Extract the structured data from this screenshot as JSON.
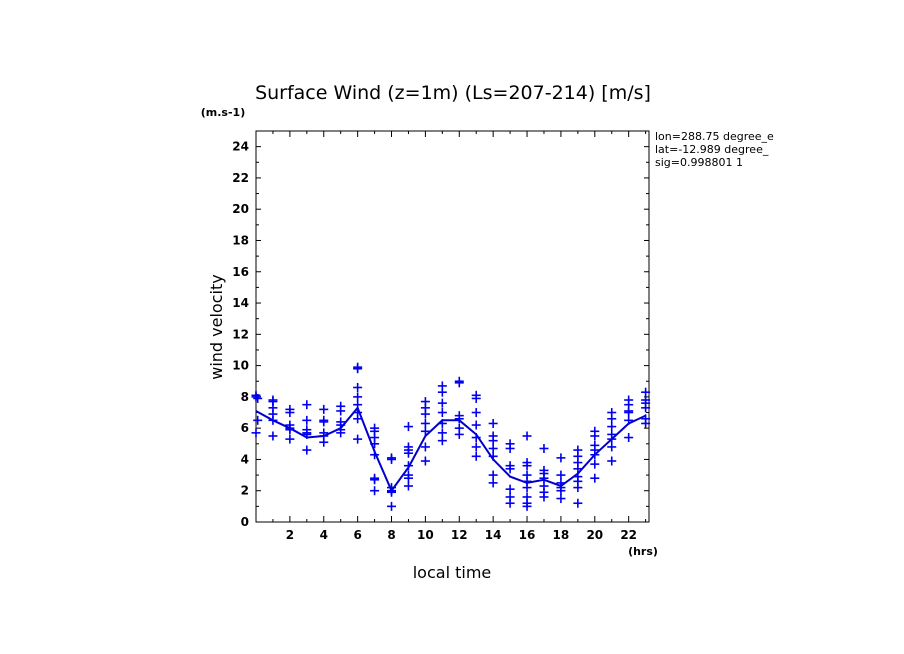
{
  "chart_data": {
    "type": "scatter",
    "title": "Surface Wind (z=1m) (Ls=207-214) [m/s]",
    "ylabel": "wind velocity",
    "yunit": "(m.s-1)",
    "xlabel": "local time",
    "xunit": "(hrs)",
    "xlim": [
      0,
      23.2
    ],
    "ylim": [
      0,
      25
    ],
    "x_ticks": [
      2,
      4,
      6,
      8,
      10,
      12,
      14,
      16,
      18,
      20,
      22
    ],
    "y_ticks": [
      0,
      2,
      4,
      6,
      8,
      10,
      12,
      14,
      16,
      18,
      20,
      22,
      24
    ],
    "info": [
      "lon=288.75 degree_e",
      "lat=-12.989 degree_",
      "sig=0.998801 1"
    ],
    "colors": {
      "series": "#0000ee",
      "mean": "#0000cc"
    },
    "series": [
      {
        "kind": "scatter",
        "marker": "plus",
        "points": [
          [
            0.0,
            8.1
          ],
          [
            0.0,
            8.0
          ],
          [
            0.1,
            7.9
          ],
          [
            0.1,
            6.5
          ],
          [
            0.0,
            5.7
          ],
          [
            1.0,
            7.8
          ],
          [
            1.0,
            7.7
          ],
          [
            1.0,
            7.3
          ],
          [
            1.0,
            6.9
          ],
          [
            1.0,
            6.5
          ],
          [
            1.0,
            5.5
          ],
          [
            2.0,
            7.2
          ],
          [
            2.0,
            7.0
          ],
          [
            2.0,
            6.2
          ],
          [
            2.0,
            6.0
          ],
          [
            2.0,
            5.9
          ],
          [
            2.0,
            5.3
          ],
          [
            3.0,
            7.5
          ],
          [
            3.0,
            6.5
          ],
          [
            3.0,
            5.9
          ],
          [
            3.0,
            5.7
          ],
          [
            3.0,
            5.6
          ],
          [
            3.0,
            4.6
          ],
          [
            4.0,
            7.2
          ],
          [
            4.0,
            6.5
          ],
          [
            4.0,
            6.4
          ],
          [
            4.0,
            5.7
          ],
          [
            4.0,
            5.5
          ],
          [
            4.0,
            5.1
          ],
          [
            5.0,
            7.4
          ],
          [
            5.0,
            7.1
          ],
          [
            5.0,
            6.4
          ],
          [
            5.0,
            6.2
          ],
          [
            5.0,
            5.9
          ],
          [
            5.0,
            5.7
          ],
          [
            6.0,
            9.9
          ],
          [
            6.0,
            9.8
          ],
          [
            6.0,
            8.6
          ],
          [
            6.0,
            8.0
          ],
          [
            6.0,
            7.5
          ],
          [
            6.0,
            7.0
          ],
          [
            6.0,
            6.6
          ],
          [
            6.0,
            5.3
          ],
          [
            7.0,
            6.0
          ],
          [
            7.0,
            5.8
          ],
          [
            7.0,
            5.4
          ],
          [
            7.0,
            5.0
          ],
          [
            7.0,
            4.3
          ],
          [
            7.0,
            2.8
          ],
          [
            7.0,
            2.7
          ],
          [
            7.0,
            2.0
          ],
          [
            8.0,
            4.1
          ],
          [
            8.0,
            4.0
          ],
          [
            8.0,
            2.2
          ],
          [
            8.0,
            2.0
          ],
          [
            8.0,
            1.9
          ],
          [
            8.0,
            1.0
          ],
          [
            9.0,
            6.1
          ],
          [
            9.0,
            4.8
          ],
          [
            9.0,
            4.6
          ],
          [
            9.0,
            4.4
          ],
          [
            9.0,
            3.6
          ],
          [
            9.0,
            3.0
          ],
          [
            9.0,
            2.8
          ],
          [
            9.0,
            2.3
          ],
          [
            10.0,
            7.7
          ],
          [
            10.0,
            7.3
          ],
          [
            10.0,
            6.9
          ],
          [
            10.0,
            6.3
          ],
          [
            10.0,
            5.8
          ],
          [
            10.0,
            4.8
          ],
          [
            10.0,
            3.9
          ],
          [
            11.0,
            8.7
          ],
          [
            11.0,
            8.3
          ],
          [
            11.0,
            7.6
          ],
          [
            11.0,
            7.0
          ],
          [
            11.0,
            6.3
          ],
          [
            11.0,
            5.7
          ],
          [
            11.0,
            5.2
          ],
          [
            12.0,
            9.0
          ],
          [
            12.0,
            8.9
          ],
          [
            12.0,
            6.8
          ],
          [
            12.0,
            6.6
          ],
          [
            12.0,
            6.0
          ],
          [
            12.0,
            5.6
          ],
          [
            13.0,
            8.1
          ],
          [
            13.0,
            7.9
          ],
          [
            13.0,
            7.0
          ],
          [
            13.0,
            6.2
          ],
          [
            13.0,
            5.4
          ],
          [
            13.0,
            4.8
          ],
          [
            13.0,
            4.2
          ],
          [
            14.0,
            6.3
          ],
          [
            14.0,
            5.5
          ],
          [
            14.0,
            5.2
          ],
          [
            14.0,
            4.7
          ],
          [
            14.0,
            4.2
          ],
          [
            14.0,
            3.0
          ],
          [
            14.0,
            2.5
          ],
          [
            15.0,
            5.0
          ],
          [
            15.0,
            4.7
          ],
          [
            15.0,
            3.6
          ],
          [
            15.0,
            3.4
          ],
          [
            15.0,
            2.1
          ],
          [
            15.0,
            1.6
          ],
          [
            15.0,
            1.2
          ],
          [
            16.0,
            5.5
          ],
          [
            16.0,
            3.8
          ],
          [
            16.0,
            3.6
          ],
          [
            16.0,
            3.0
          ],
          [
            16.0,
            2.6
          ],
          [
            16.0,
            2.2
          ],
          [
            16.0,
            1.6
          ],
          [
            16.0,
            1.2
          ],
          [
            16.0,
            1.0
          ],
          [
            17.0,
            4.7
          ],
          [
            17.0,
            3.3
          ],
          [
            17.0,
            3.1
          ],
          [
            17.0,
            2.8
          ],
          [
            17.0,
            2.3
          ],
          [
            17.0,
            1.9
          ],
          [
            17.0,
            1.6
          ],
          [
            18.0,
            4.1
          ],
          [
            18.0,
            3.0
          ],
          [
            18.0,
            2.5
          ],
          [
            18.0,
            2.2
          ],
          [
            18.0,
            2.0
          ],
          [
            18.0,
            1.5
          ],
          [
            19.0,
            4.6
          ],
          [
            19.0,
            4.2
          ],
          [
            19.0,
            3.8
          ],
          [
            19.0,
            3.4
          ],
          [
            19.0,
            2.9
          ],
          [
            19.0,
            2.6
          ],
          [
            19.0,
            2.2
          ],
          [
            19.0,
            1.2
          ],
          [
            20.0,
            5.8
          ],
          [
            20.0,
            5.5
          ],
          [
            20.0,
            4.9
          ],
          [
            20.0,
            4.6
          ],
          [
            20.0,
            4.3
          ],
          [
            20.0,
            3.7
          ],
          [
            20.0,
            2.8
          ],
          [
            21.0,
            7.0
          ],
          [
            21.0,
            6.6
          ],
          [
            21.0,
            6.1
          ],
          [
            21.0,
            5.6
          ],
          [
            21.0,
            5.3
          ],
          [
            21.0,
            4.8
          ],
          [
            21.0,
            3.9
          ],
          [
            22.0,
            7.8
          ],
          [
            22.0,
            7.5
          ],
          [
            22.0,
            7.1
          ],
          [
            22.0,
            7.0
          ],
          [
            22.0,
            6.5
          ],
          [
            22.0,
            5.4
          ],
          [
            23.0,
            8.3
          ],
          [
            23.0,
            7.8
          ],
          [
            23.0,
            7.6
          ],
          [
            23.0,
            7.3
          ],
          [
            23.0,
            6.6
          ],
          [
            23.0,
            6.3
          ]
        ]
      },
      {
        "kind": "line",
        "points": [
          [
            0.0,
            7.1
          ],
          [
            1.0,
            6.5
          ],
          [
            2.0,
            6.0
          ],
          [
            3.0,
            5.4
          ],
          [
            4.0,
            5.5
          ],
          [
            5.0,
            6.0
          ],
          [
            6.0,
            7.3
          ],
          [
            7.0,
            4.5
          ],
          [
            8.0,
            2.0
          ],
          [
            9.0,
            3.5
          ],
          [
            10.0,
            5.5
          ],
          [
            11.0,
            6.5
          ],
          [
            12.0,
            6.5
          ],
          [
            13.0,
            5.6
          ],
          [
            14.0,
            4.0
          ],
          [
            15.0,
            2.9
          ],
          [
            16.0,
            2.5
          ],
          [
            17.0,
            2.7
          ],
          [
            18.0,
            2.3
          ],
          [
            19.0,
            3.1
          ],
          [
            20.0,
            4.3
          ],
          [
            21.0,
            5.3
          ],
          [
            22.0,
            6.3
          ],
          [
            23.0,
            6.8
          ]
        ]
      }
    ]
  }
}
